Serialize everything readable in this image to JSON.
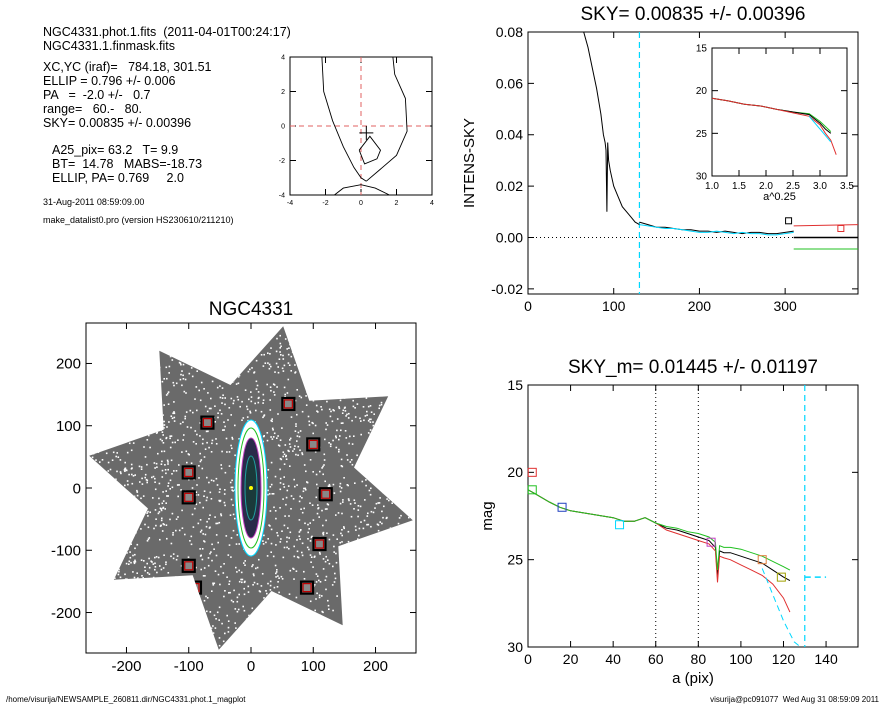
{
  "info": {
    "line1": "NGC4331.phot.1.fits  (2011-04-01T00:24:17)",
    "line2": "NGC4331.1.finmask.fits",
    "line3": "XC,YC (iraf)=   784.18, 301.51",
    "line4": "ELLIP = 0.796 +/- 0.006",
    "line5": "PA   =  -2.0 +/-   0.7",
    "line6": "range=   60.-   80.",
    "line7": "SKY= 0.00835 +/- 0.00396",
    "line8": "A25_pix= 63.2   T= 9.9",
    "line9": "BT=  14.78   MABS=-18.73",
    "line10": "ELLIP, PA= 0.769     2.0",
    "date": "31-Aug-2011 08:59:09.00",
    "program": "make_datalist0.pro (version HS230610/211210)"
  },
  "footer": {
    "left": "/home/visurija/NEWSAMPLE_260811.dir/NGC4331.phot.1_magplot",
    "right": "visurija@pc091077  Wed Aug 31 08:59:09 2011"
  },
  "chart_data": [
    {
      "id": "contour",
      "type": "line",
      "title": "",
      "xlim": [
        -4,
        4
      ],
      "ylim": [
        -4,
        4
      ],
      "xticks": [
        "-4",
        "-2",
        "0",
        "2",
        "4"
      ],
      "yticks": [
        "-4",
        "-2",
        "0",
        "2",
        "4"
      ],
      "contours": [
        {
          "x": [
            -2.2,
            -2.1,
            -1.6,
            -1.0,
            -0.4,
            0.0,
            0.3
          ],
          "y": [
            4.0,
            2.0,
            0.3,
            -1.2,
            -2.4,
            -3.0,
            -3.2
          ]
        },
        {
          "x": [
            0.3,
            1.1,
            2.0,
            2.6,
            2.5,
            1.9,
            1.8
          ],
          "y": [
            -3.2,
            -2.5,
            -1.7,
            -0.3,
            1.6,
            3.0,
            4.0
          ]
        },
        {
          "x": [
            -0.1,
            0.5,
            1.1,
            0.9,
            0.2,
            -0.1
          ],
          "y": [
            -1.4,
            -0.6,
            -1.4,
            -1.9,
            -2.2,
            -1.4
          ]
        },
        {
          "x": [
            -1.5,
            -1.0,
            0.0,
            0.8,
            1.6
          ],
          "y": [
            -4.0,
            -3.6,
            -3.4,
            -3.6,
            -4.0
          ]
        }
      ],
      "center": [
        0.3,
        -0.4
      ],
      "crosshair": [
        0,
        0
      ]
    },
    {
      "id": "sky-profile",
      "type": "line",
      "title": "SKY= 0.00835 +/- 0.00396",
      "xlabel": "",
      "ylabel": "INTENS-SKY",
      "xlim": [
        0,
        385
      ],
      "ylim": [
        -0.022,
        0.08
      ],
      "xticks": [
        "0",
        "100",
        "200",
        "300"
      ],
      "yticks": [
        "-0.02",
        "0.00",
        "0.02",
        "0.04",
        "0.06",
        "0.08"
      ],
      "series": [
        {
          "color": "#000000",
          "x": [
            65,
            70,
            75,
            80,
            85,
            88,
            90,
            91,
            92,
            93,
            94,
            96,
            100,
            105,
            110,
            115,
            120,
            125,
            130
          ],
          "y": [
            0.08,
            0.074,
            0.066,
            0.058,
            0.048,
            0.04,
            0.037,
            0.034,
            0.01,
            0.037,
            0.03,
            0.026,
            0.02,
            0.016,
            0.012,
            0.01,
            0.008,
            0.006,
            0.005
          ]
        },
        {
          "color": "#000000",
          "x": [
            130,
            140,
            150,
            160,
            170,
            180,
            190,
            200,
            210,
            220,
            230,
            240,
            250,
            260,
            270,
            280,
            290,
            300,
            310
          ],
          "y": [
            0.006,
            0.005,
            0.004,
            0.004,
            0.0035,
            0.003,
            0.003,
            0.0025,
            0.0025,
            0.002,
            0.0025,
            0.002,
            0.0015,
            0.002,
            0.002,
            0.0015,
            0.0015,
            0.002,
            0.0025
          ]
        },
        {
          "color": "#00d8ff",
          "x": [
            130,
            140,
            150,
            160,
            170,
            180,
            190,
            200,
            210,
            220,
            230,
            240,
            250,
            260,
            270,
            280,
            290,
            300,
            310
          ],
          "y": [
            0.005,
            0.0045,
            0.004,
            0.0035,
            0.0035,
            0.003,
            0.0025,
            0.002,
            0.002,
            0.0025,
            0.002,
            0.0015,
            0.002,
            0.0015,
            0.0015,
            0.001,
            0.001,
            0.0015,
            0.002
          ]
        },
        {
          "color": "#e03030",
          "x": [
            310,
            385
          ],
          "y": [
            0.0045,
            0.005
          ]
        },
        {
          "color": "#000000",
          "x": [
            310,
            385
          ],
          "y": [
            0.0,
            0.0
          ]
        },
        {
          "color": "#20c020",
          "x": [
            310,
            385
          ],
          "y": [
            -0.0045,
            -0.0045
          ]
        }
      ],
      "markers": [
        {
          "x": 304,
          "y": 0.0065,
          "color": "#000000"
        },
        {
          "x": 365,
          "y": 0.0035,
          "color": "#e03030"
        }
      ],
      "vline": {
        "x": 130,
        "color": "#00d8ff"
      },
      "hline_dotted": 0.0,
      "inset": {
        "xlabel": "a^0.25",
        "xlim": [
          1.0,
          3.5
        ],
        "ylim": [
          15,
          30
        ],
        "xticks": [
          "1.0",
          "1.5",
          "2.0",
          "2.5",
          "3.0",
          "3.5"
        ],
        "yticks": [
          "15",
          "20",
          "25",
          "30"
        ],
        "series": [
          {
            "color": "#20c020",
            "x": [
              1.0,
              1.3,
              1.6,
              1.9,
              2.2,
              2.5,
              2.8,
              3.0,
              3.2
            ],
            "y": [
              20.9,
              21.2,
              21.6,
              21.8,
              22.2,
              22.5,
              22.7,
              23.6,
              24.8
            ]
          },
          {
            "color": "#000000",
            "x": [
              1.0,
              1.3,
              1.6,
              1.9,
              2.2,
              2.5,
              2.8,
              3.0,
              3.1,
              3.2
            ],
            "y": [
              20.9,
              21.2,
              21.6,
              21.8,
              22.2,
              22.5,
              22.8,
              23.8,
              24.5,
              25.0
            ]
          },
          {
            "color": "#e03030",
            "x": [
              1.0,
              1.3,
              1.6,
              1.9,
              2.2,
              2.5,
              2.8,
              3.0,
              3.1,
              3.2,
              3.3
            ],
            "y": [
              20.9,
              21.2,
              21.6,
              21.8,
              22.2,
              22.6,
              23.0,
              24.0,
              25.0,
              25.8,
              27.5
            ]
          },
          {
            "color": "#00d8ff",
            "x": [
              2.8,
              3.0,
              3.2
            ],
            "y": [
              23.0,
              24.5,
              26.0
            ]
          }
        ]
      }
    },
    {
      "id": "galaxy-image",
      "type": "scatter",
      "title": "NGC4331",
      "xlim": [
        -265,
        265
      ],
      "ylim": [
        -265,
        265
      ],
      "xticks": [
        "-200",
        "-100",
        "0",
        "100",
        "200"
      ],
      "yticks": [
        "-200",
        "-100",
        "0",
        "100",
        "200"
      ],
      "masked_sources": [
        [
          -70,
          105
        ],
        [
          60,
          135
        ],
        [
          -100,
          25
        ],
        [
          100,
          70
        ],
        [
          -100,
          -15
        ],
        [
          120,
          -10
        ],
        [
          -100,
          -125
        ],
        [
          110,
          -90
        ],
        [
          -90,
          -160
        ],
        [
          90,
          -160
        ]
      ]
    },
    {
      "id": "mag-profile",
      "type": "line",
      "title": "SKY_m=  0.01445 +/- 0.01197",
      "xlabel": "a (pix)",
      "ylabel": "mag",
      "xlim": [
        0,
        155
      ],
      "ylim": [
        15,
        30
      ],
      "xticks": [
        "0",
        "20",
        "40",
        "60",
        "80",
        "100",
        "120",
        "140"
      ],
      "yticks": [
        "15",
        "20",
        "25",
        "30"
      ],
      "series": [
        {
          "color": "#000000",
          "x": [
            0,
            3,
            10,
            15,
            20,
            25,
            30,
            35,
            40,
            45,
            50,
            55,
            60,
            65,
            70,
            75,
            80,
            85,
            88,
            89,
            90,
            92,
            95,
            100,
            105,
            110,
            115,
            120,
            123
          ],
          "y": [
            21.0,
            21.2,
            21.7,
            22.0,
            22.2,
            22.3,
            22.4,
            22.5,
            22.6,
            22.8,
            22.8,
            22.6,
            22.9,
            23.2,
            23.3,
            23.5,
            23.7,
            23.9,
            24.3,
            26.0,
            24.5,
            24.6,
            24.6,
            24.8,
            25.0,
            25.2,
            25.6,
            26.0,
            26.2
          ]
        },
        {
          "color": "#e03030",
          "x": [
            0,
            3,
            10,
            15,
            20,
            25,
            30,
            35,
            40,
            45,
            50,
            55,
            60,
            65,
            70,
            75,
            80,
            85,
            88,
            89,
            90,
            92,
            95,
            100,
            105,
            110,
            115,
            120,
            123
          ],
          "y": [
            21.0,
            21.2,
            21.7,
            22.0,
            22.2,
            22.3,
            22.4,
            22.5,
            22.6,
            22.8,
            22.8,
            22.6,
            22.9,
            23.3,
            23.5,
            23.7,
            23.9,
            24.1,
            24.5,
            26.3,
            24.8,
            24.9,
            25.0,
            25.3,
            25.6,
            25.9,
            26.4,
            27.2,
            28.0
          ]
        },
        {
          "color": "#20c020",
          "x": [
            0,
            3,
            10,
            15,
            20,
            25,
            30,
            35,
            40,
            45,
            50,
            55,
            60,
            65,
            70,
            75,
            80,
            85,
            88,
            89,
            90,
            92,
            95,
            100,
            105,
            110,
            115,
            120,
            123
          ],
          "y": [
            21.0,
            21.2,
            21.7,
            22.0,
            22.2,
            22.3,
            22.4,
            22.5,
            22.6,
            22.8,
            22.8,
            22.6,
            22.9,
            23.1,
            23.2,
            23.4,
            23.5,
            23.7,
            24.0,
            25.6,
            24.2,
            24.3,
            24.3,
            24.4,
            24.6,
            24.8,
            25.1,
            25.4,
            25.6
          ]
        },
        {
          "color": "#00d8ff",
          "x": [
            110,
            115,
            120,
            125,
            128
          ],
          "y": [
            25.5,
            27.0,
            28.5,
            29.7,
            30.0
          ]
        }
      ],
      "markers": [
        {
          "x": 2,
          "y": 20.0,
          "color": "#e03030"
        },
        {
          "x": 2,
          "y": 21.0,
          "color": "#20c020"
        },
        {
          "x": 16,
          "y": 22.0,
          "color": "#2040c0"
        },
        {
          "x": 43,
          "y": 23.0,
          "color": "#00d8ff"
        },
        {
          "x": 86,
          "y": 24.0,
          "color": "#c040c0"
        },
        {
          "x": 110,
          "y": 25.0,
          "color": "#e08040"
        },
        {
          "x": 119,
          "y": 26.0,
          "color": "#a0a000"
        }
      ],
      "vlines_dotted": [
        60,
        80
      ],
      "vline": {
        "x": 130,
        "color": "#00d8ff"
      },
      "sky_dash": {
        "x": [
          130,
          140
        ],
        "y": 26.0,
        "color": "#00d8ff"
      }
    }
  ]
}
